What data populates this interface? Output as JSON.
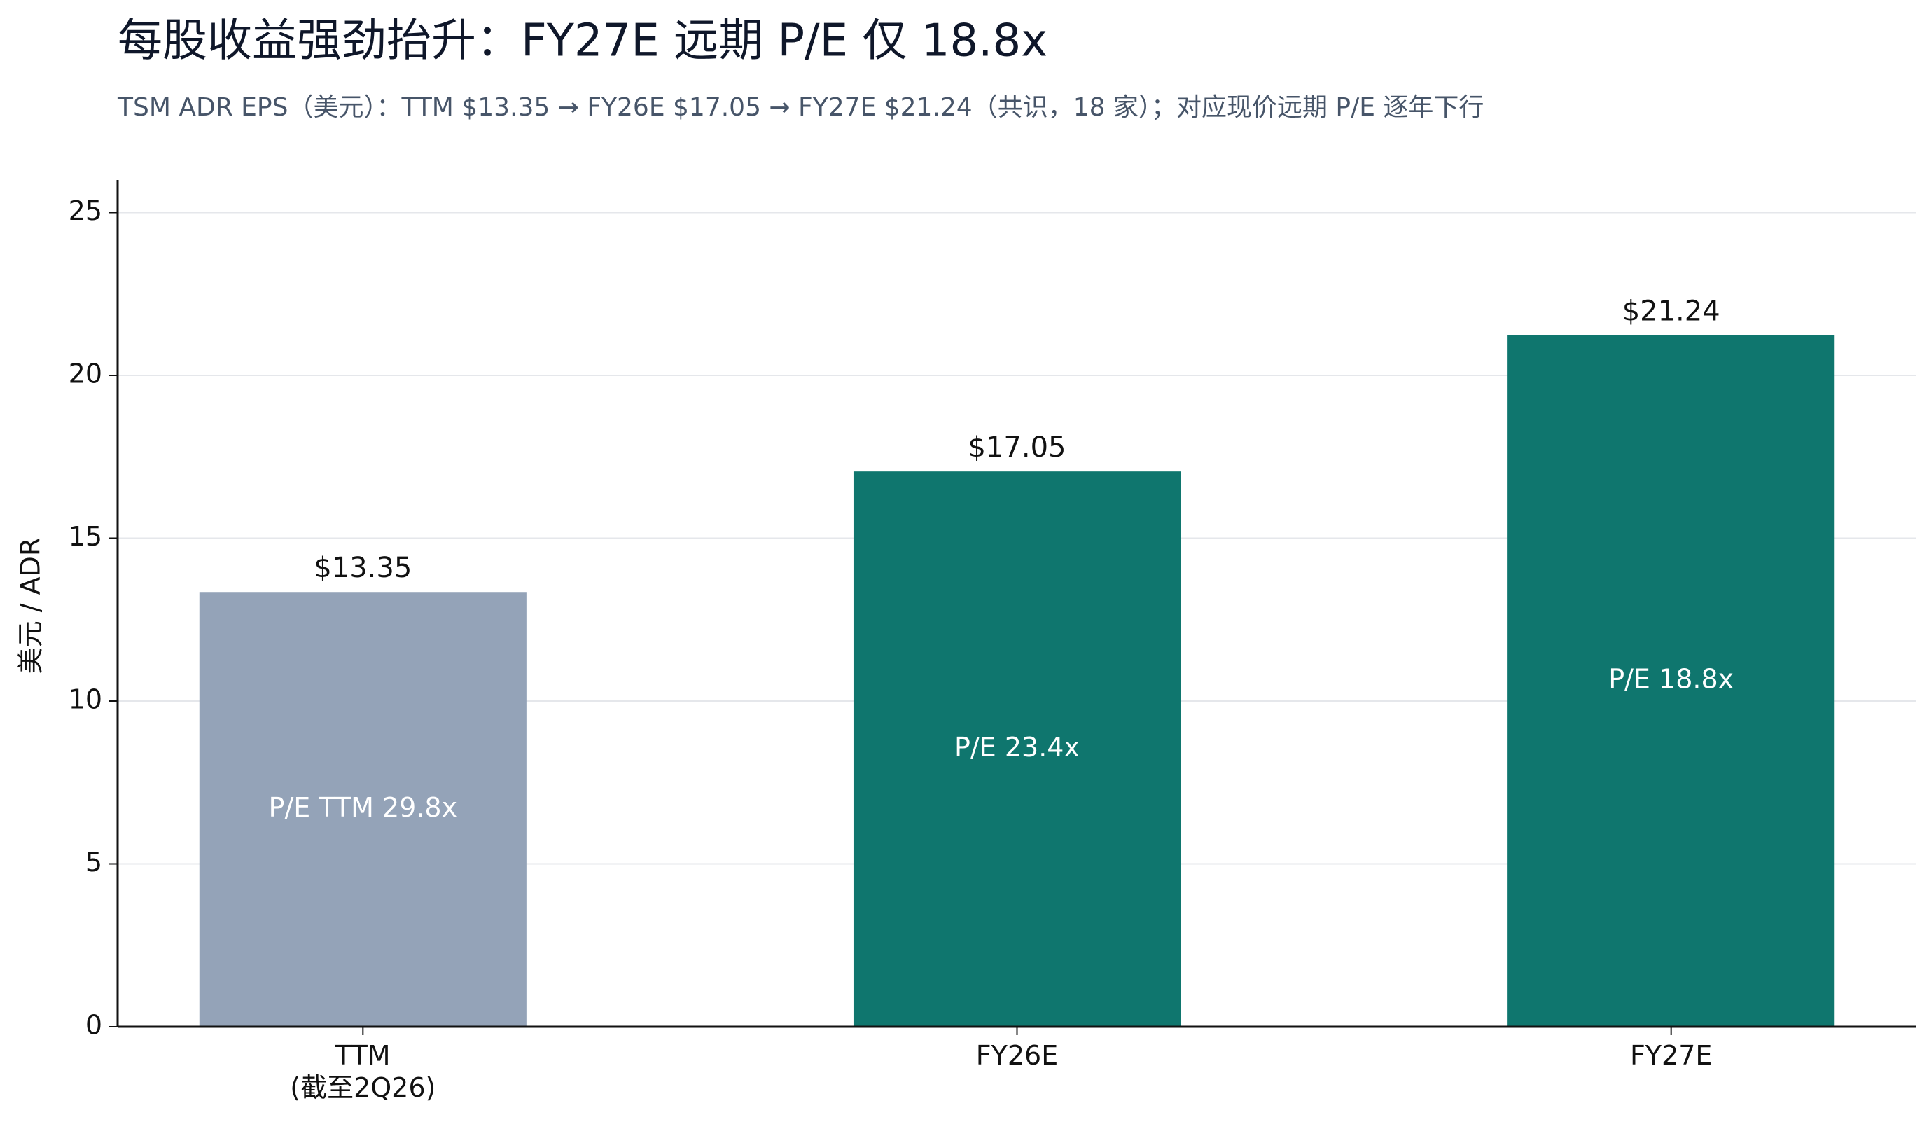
{
  "chart_data": {
    "type": "bar",
    "title": "每股收益强劲抬升：FY27E 远期 P/E 仅 18.8x",
    "subtitle": "TSM ADR EPS（美元）：TTM $13.35 → FY26E $17.05 → FY27E $21.24（共识，18 家）；对应现价远期 P/E 逐年下行",
    "y_label": "美元 / ADR",
    "categories": [
      "TTM\n(截至2Q26)",
      "FY26E",
      "FY27E"
    ],
    "values": [
      13.35,
      17.05,
      21.24
    ],
    "value_labels": [
      "$13.35",
      "$17.05",
      "$21.24"
    ],
    "bar_annotations": [
      "P/E TTM 29.8x",
      "P/E 23.4x",
      "P/E 18.8x"
    ],
    "colors": [
      "#94a3b8",
      "#0f766e",
      "#0f766e"
    ],
    "ylim": [
      0,
      26
    ],
    "yticks": [
      0,
      5,
      10,
      15,
      20,
      25
    ],
    "grid": true
  }
}
